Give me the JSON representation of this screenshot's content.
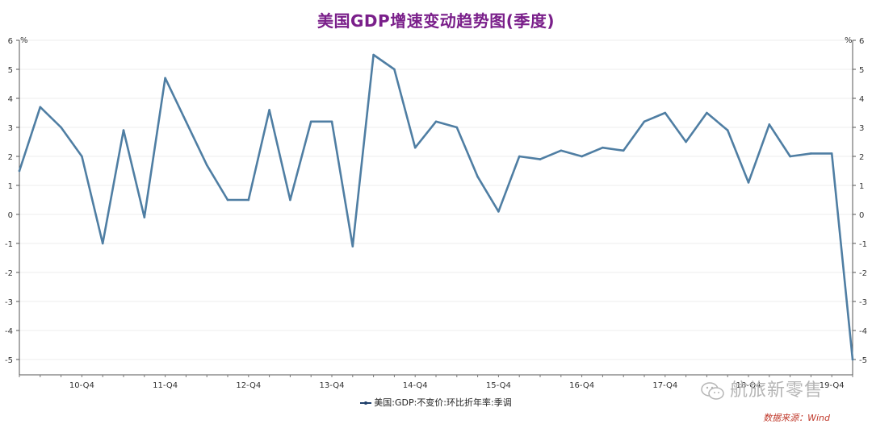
{
  "title": "美国GDP增速变动趋势图(季度)",
  "chart_data": {
    "type": "line",
    "title": "美国GDP增速变动趋势图(季度)",
    "y_unit_left": "%",
    "y_unit_right": "%",
    "ylim": [
      -5,
      6
    ],
    "y_ticks": [
      6,
      5,
      4,
      3,
      2,
      1,
      0,
      -1,
      -2,
      -3,
      -4,
      -5
    ],
    "x_tick_labels": [
      "10-Q4",
      "11-Q4",
      "12-Q4",
      "13-Q4",
      "14-Q4",
      "15-Q4",
      "16-Q4",
      "17-Q4",
      "18-Q4",
      "19-Q4"
    ],
    "x_tick_indices": [
      3,
      7,
      11,
      15,
      19,
      23,
      27,
      31,
      35,
      39
    ],
    "grid": true,
    "legend_position": "bottom",
    "series": [
      {
        "name": "美国:GDP:不变价:环比折年率:季调",
        "color": "#4f7ea3",
        "values": [
          1.5,
          3.7,
          3.0,
          2.0,
          -1.0,
          2.9,
          -0.1,
          4.7,
          3.2,
          1.7,
          0.5,
          0.5,
          3.6,
          0.5,
          3.2,
          3.2,
          -1.1,
          5.5,
          5.0,
          2.3,
          3.2,
          3.0,
          1.3,
          0.1,
          2.0,
          1.9,
          2.2,
          2.0,
          2.3,
          2.2,
          3.2,
          3.5,
          2.5,
          3.5,
          2.9,
          1.1,
          3.1,
          2.0,
          2.1,
          2.1,
          -5.0
        ]
      }
    ]
  },
  "legend": {
    "label": "美国:GDP:不变价:环比折年率:季调"
  },
  "source": "数据来源：Wind",
  "watermark": "航旅新零售"
}
